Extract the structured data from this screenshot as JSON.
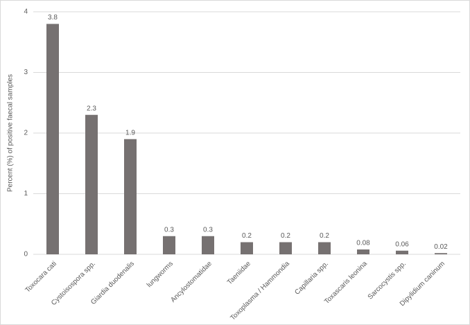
{
  "chart_data": {
    "type": "bar",
    "y_label": "Percent (%) of positive faecal samples",
    "categories": [
      "Toxocara cati",
      "Cystoisospora spp.",
      "Giardia duodenalis",
      "lungworms",
      "Ancylostomatidae",
      "Taeniidae",
      "Toxoplasma / Hammondia",
      "Capillaria spp.",
      "Toxascaris leonina",
      "Sarcocystis spp.",
      "Dipylidium caninum"
    ],
    "values": [
      3.8,
      2.3,
      1.9,
      0.3,
      0.3,
      0.2,
      0.2,
      0.2,
      0.08,
      0.06,
      0.02
    ],
    "color": "#767171",
    "ylim": [
      0,
      4
    ],
    "yticks": [
      0,
      1,
      2,
      3,
      4
    ],
    "grid": true
  }
}
